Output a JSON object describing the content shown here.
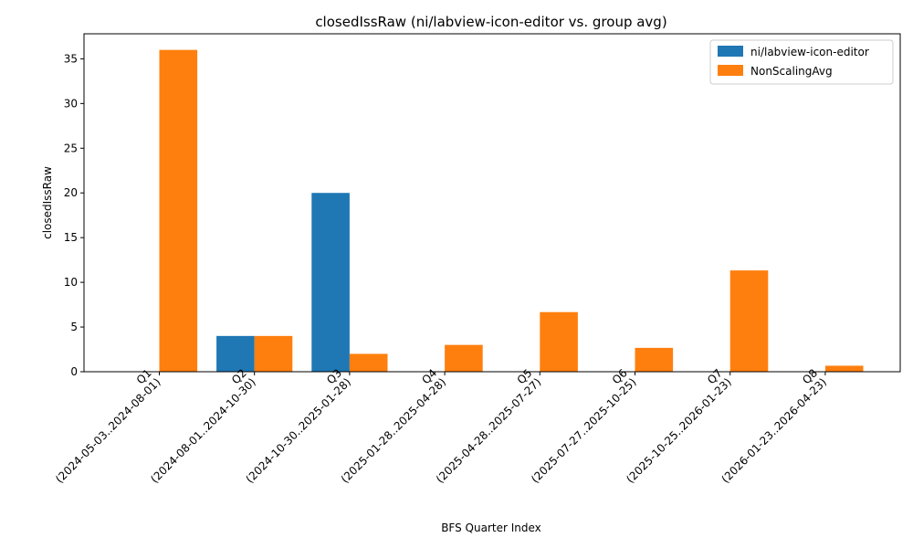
{
  "chart_data": {
    "type": "bar",
    "title": "closedIssRaw (ni/labview-icon-editor vs. group avg)",
    "xlabel": "BFS Quarter Index",
    "ylabel": "closedIssRaw",
    "ylim": [
      0,
      37.8
    ],
    "yticks": [
      0,
      5,
      10,
      15,
      20,
      25,
      30,
      35
    ],
    "grid": false,
    "legend_position": "top-right",
    "categories": [
      [
        "Q1",
        "(2024-05-03..2024-08-01)"
      ],
      [
        "Q2",
        "(2024-08-01..2024-10-30)"
      ],
      [
        "Q3",
        "(2024-10-30..2025-01-28)"
      ],
      [
        "Q4",
        "(2025-01-28..2025-04-28)"
      ],
      [
        "Q5",
        "(2025-04-28..2025-07-27)"
      ],
      [
        "Q6",
        "(2025-07-27..2025-10-25)"
      ],
      [
        "Q7",
        "(2025-10-25..2026-01-23)"
      ],
      [
        "Q8",
        "(2026-01-23..2026-04-23)"
      ]
    ],
    "series": [
      {
        "name": "ni/labview-icon-editor",
        "color": "#1f77b4",
        "values": [
          0,
          4,
          20,
          0,
          0,
          0,
          0,
          0
        ]
      },
      {
        "name": "NonScalingAvg",
        "color": "#ff7f0e",
        "values": [
          36,
          4,
          2,
          3,
          6.67,
          2.67,
          11.33,
          0.67
        ]
      }
    ]
  }
}
